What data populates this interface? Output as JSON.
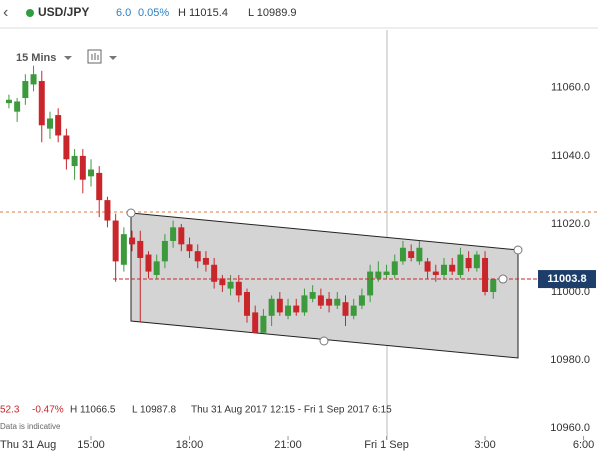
{
  "header": {
    "back": "‹",
    "symbol": "USD/JPY",
    "change": "6.0",
    "change_pct": "0.05%",
    "high": "H 11015.4",
    "low": "L 10989.9"
  },
  "toolbar": {
    "interval": "15 Mins"
  },
  "info": {
    "change": "52.3",
    "change_pct": "-0.47%",
    "high": "H 11066.5",
    "low": "L 10987.8",
    "range": "Thu 31 Aug 2017 12:15 - Fri 1 Sep 2017 6:15",
    "note": "Data is indicative"
  },
  "chart_data": {
    "type": "candlestick",
    "up_color": "#3c9a3c",
    "down_color": "#c8262b",
    "x": [
      12.5,
      12.75,
      13,
      13.25,
      13.5,
      13.75,
      14,
      14.25,
      14.5,
      14.75,
      15,
      15.25,
      15.5,
      15.75,
      16,
      16.25,
      16.5,
      16.75,
      17,
      17.25,
      17.5,
      17.75,
      18,
      18.25,
      18.5,
      18.75,
      19,
      19.25,
      19.5,
      19.75,
      20,
      20.25,
      20.5,
      20.75,
      21,
      21.25,
      21.5,
      21.75,
      22,
      22.25,
      22.5,
      22.75,
      23,
      23.25,
      23.5,
      23.75,
      24,
      24.25,
      24.5,
      24.75,
      25,
      25.25,
      25.5,
      25.75,
      26,
      26.25,
      26.5,
      26.75,
      27,
      27.25
    ],
    "open": [
      11055.5,
      11053,
      11057,
      11061,
      11062,
      11048,
      11052,
      11046,
      11037,
      11040,
      11034,
      11035,
      11027,
      11021,
      11008,
      11016,
      11015,
      11011,
      11005,
      11009,
      11015,
      11019,
      11014,
      11012,
      11010,
      11008,
      11004,
      11001,
      11003,
      11000,
      10994,
      10988,
      10993,
      10998,
      10993,
      10996,
      10994,
      10998,
      10999,
      10998,
      10996,
      10997,
      10993,
      10996,
      10999,
      11004,
      11005,
      11005,
      11009,
      11012,
      11009,
      11009,
      11006,
      11005,
      11008,
      11005,
      11010,
      11007,
      11010,
      11000
    ],
    "high": [
      11058,
      11057,
      11064,
      11066.5,
      11065,
      11053,
      11054,
      11048,
      11042,
      11042,
      11039,
      11037,
      11028,
      11023,
      11019,
      11018,
      11018,
      11012,
      11011,
      11017,
      11021,
      11020,
      11016,
      11014,
      11012,
      11010,
      11005,
      11005,
      11005,
      11001,
      10996,
      10995,
      10999,
      11000,
      10998,
      10998,
      11001,
      11002,
      11001,
      11000,
      11000,
      10999,
      10998,
      11001,
      11008,
      11009,
      11008,
      11011,
      11015,
      11014,
      11015,
      11010,
      11008,
      11010,
      11010,
      11013,
      11012,
      11012,
      11012,
      11004
    ],
    "low": [
      11054,
      11050,
      11055,
      11059,
      11044,
      11045,
      11044,
      11036,
      11033,
      11029,
      11031,
      11022,
      11019,
      11003,
      11006,
      11012,
      10991,
      11004,
      11004,
      11007,
      11013,
      11012,
      11010,
      11007,
      11006,
      11001,
      11000,
      10999,
      10997,
      10991,
      10987.8,
      10988.5,
      10990,
      10993,
      10992,
      10993,
      10993,
      10997,
      10995,
      10994,
      10995,
      10990,
      10992,
      10995,
      10997,
      11003,
      11004,
      11004,
      11008,
      11009,
      11008,
      11004,
      11003,
      11004,
      11005,
      11004,
      11006,
      11006,
      10999,
      10998
    ],
    "close": [
      11056.5,
      11056,
      11062,
      11064,
      11049,
      11051,
      11046,
      11039,
      11040,
      11033,
      11036,
      11027,
      11021,
      11009,
      11017,
      11014,
      11010,
      11006,
      11009,
      11015,
      11019,
      11014,
      11012,
      11009,
      11008,
      11003,
      11002,
      11003,
      10999,
      10993,
      10988,
      10993,
      10998,
      10994,
      10996,
      10994,
      10999,
      11000,
      10996,
      10996,
      10998,
      10993,
      10996,
      10999,
      11006,
      11006,
      11006,
      11009,
      11013,
      11010,
      11013,
      11006,
      11005,
      11008,
      11006,
      11011,
      11007,
      11011,
      11000,
      11003.8
    ],
    "last_price": 11003.8,
    "reference_level": 11023.5,
    "xlim": [
      12.228,
      30.44
    ],
    "ylim": [
      10956.5,
      11077
    ],
    "xticks": [
      {
        "value": 12,
        "label": "Thu 31 Aug"
      },
      {
        "value": 15,
        "label": "15:00"
      },
      {
        "value": 18,
        "label": "18:00"
      },
      {
        "value": 21,
        "label": "21:00"
      },
      {
        "value": 24,
        "label": "Fri 1 Sep"
      },
      {
        "value": 27,
        "label": "3:00"
      },
      {
        "value": 30,
        "label": "6:00"
      }
    ],
    "yticks": [
      {
        "value": 10960,
        "label": "10960.0"
      },
      {
        "value": 10980,
        "label": "10980.0"
      },
      {
        "value": 11000,
        "label": "11000.0"
      },
      {
        "value": 11020,
        "label": "11020.0"
      },
      {
        "value": 11040,
        "label": "11040.0"
      },
      {
        "value": 11060,
        "label": "11060.0"
      }
    ]
  }
}
